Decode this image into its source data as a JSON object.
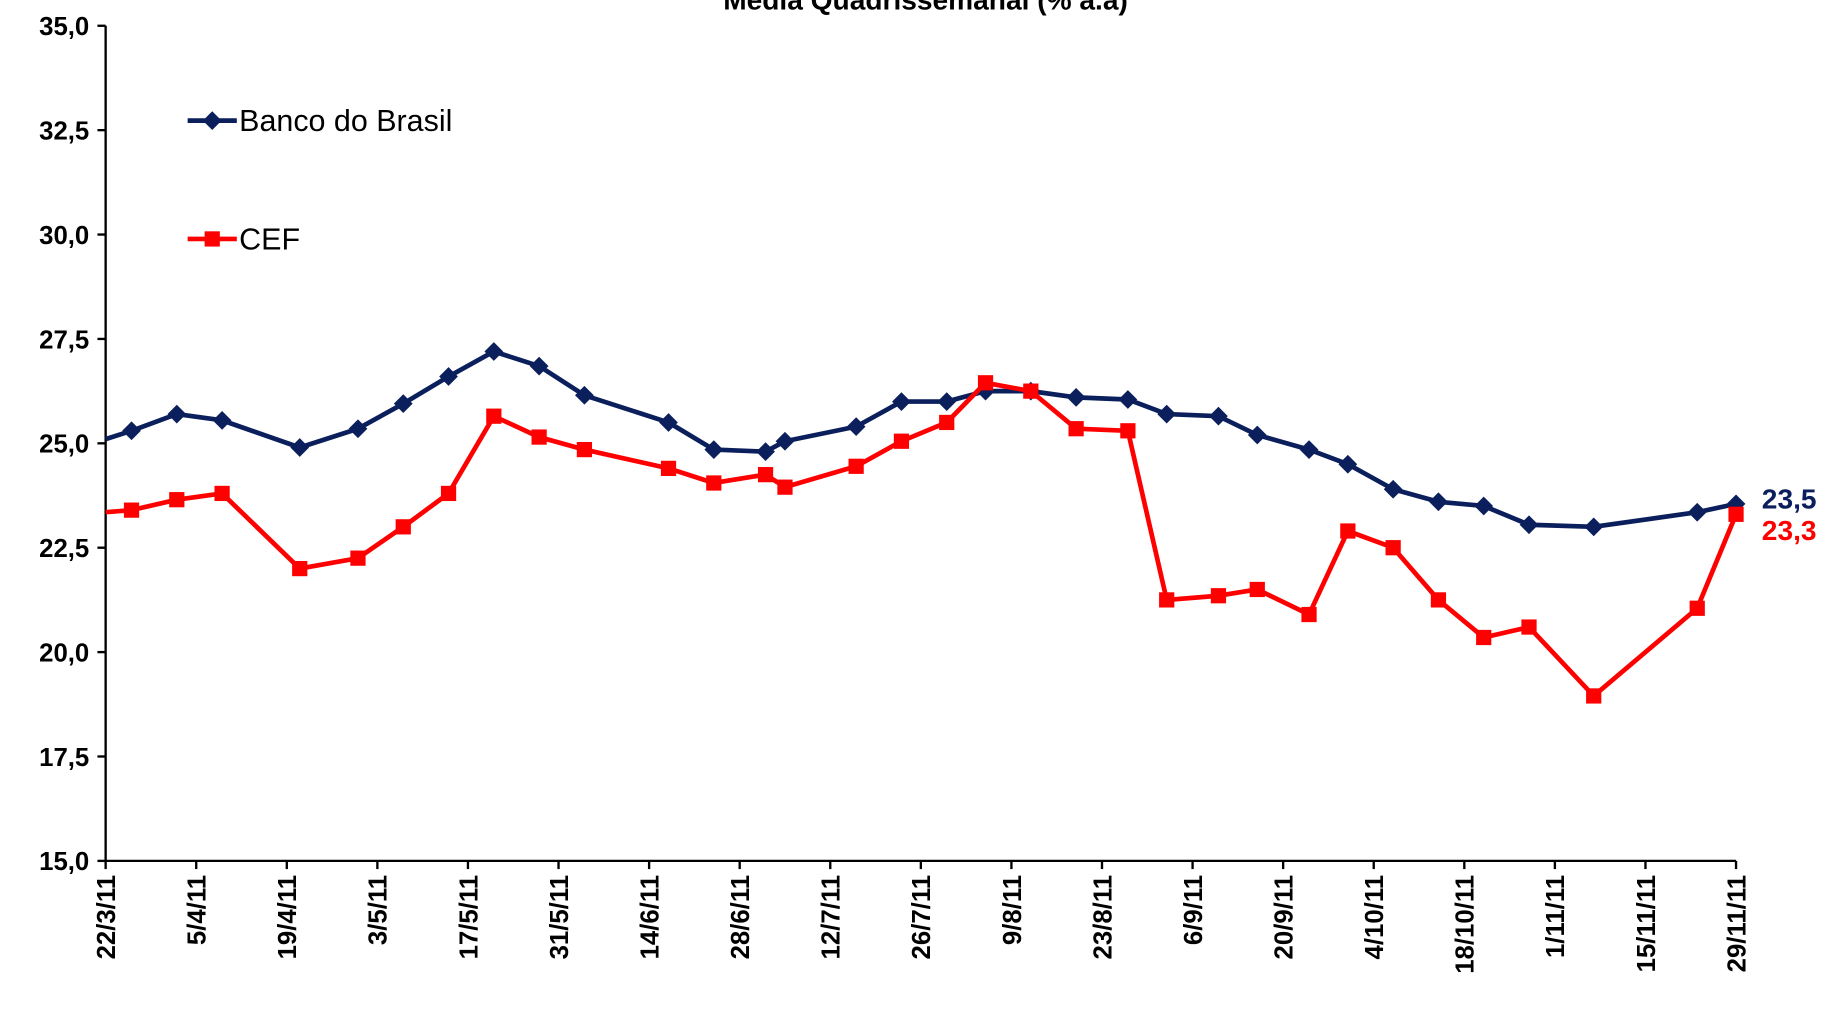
{
  "chart_data": {
    "type": "line",
    "title": "Média Quadrissemanal (% a.a)",
    "x": [
      "2011-03-22",
      "2011-03-26",
      "2011-04-02",
      "2011-04-09",
      "2011-04-21",
      "2011-04-30",
      "2011-05-07",
      "2011-05-14",
      "2011-05-21",
      "2011-05-28",
      "2011-06-04",
      "2011-06-17",
      "2011-06-24",
      "2011-07-02",
      "2011-07-05",
      "2011-07-16",
      "2011-07-23",
      "2011-07-30",
      "2011-08-05",
      "2011-08-12",
      "2011-08-19",
      "2011-08-27",
      "2011-09-02",
      "2011-09-10",
      "2011-09-16",
      "2011-09-24",
      "2011-09-30",
      "2011-10-07",
      "2011-10-14",
      "2011-10-21",
      "2011-10-28",
      "2011-11-07",
      "2011-11-23",
      "2011-11-29"
    ],
    "series": [
      {
        "name": "Banco do Brasil",
        "color": "#0a1f5c",
        "marker": "diamond",
        "values": [
          25.1,
          25.3,
          25.7,
          25.55,
          24.9,
          25.35,
          25.95,
          26.6,
          27.2,
          26.85,
          26.15,
          25.5,
          24.85,
          24.8,
          25.05,
          25.4,
          26.0,
          26.0,
          26.25,
          26.25,
          26.1,
          26.05,
          25.7,
          25.65,
          25.2,
          24.85,
          24.5,
          23.9,
          23.6,
          23.5,
          23.05,
          23.0,
          23.35,
          23.55
        ],
        "value_labels": [
          null,
          null,
          null,
          null,
          null,
          null,
          null,
          null,
          null,
          null,
          null,
          null,
          null,
          null,
          null,
          null,
          null,
          null,
          null,
          null,
          null,
          null,
          null,
          null,
          null,
          null,
          null,
          null,
          null,
          null,
          null,
          null,
          null,
          "23,5"
        ]
      },
      {
        "name": "CEF",
        "color": "#ff0000",
        "marker": "square",
        "values": [
          23.35,
          23.4,
          23.65,
          23.8,
          22.0,
          22.25,
          23.0,
          23.8,
          25.65,
          25.15,
          24.85,
          24.4,
          24.05,
          24.25,
          23.95,
          24.45,
          25.05,
          25.5,
          26.45,
          26.25,
          25.35,
          25.3,
          21.25,
          21.35,
          21.5,
          20.9,
          22.9,
          22.5,
          21.25,
          20.35,
          20.6,
          18.95,
          21.05,
          23.3
        ],
        "value_labels": [
          null,
          null,
          null,
          null,
          null,
          null,
          null,
          null,
          null,
          null,
          null,
          null,
          null,
          null,
          null,
          null,
          null,
          null,
          null,
          null,
          null,
          null,
          null,
          null,
          null,
          null,
          null,
          null,
          null,
          null,
          null,
          null,
          null,
          "23,3"
        ]
      }
    ],
    "xlim": [
      "2011-03-22",
      "2011-11-29"
    ],
    "xticks": [
      {
        "value": "2011-03-22",
        "label": "22/3/11"
      },
      {
        "value": "2011-04-05",
        "label": "5/4/11"
      },
      {
        "value": "2011-04-19",
        "label": "19/4/11"
      },
      {
        "value": "2011-05-03",
        "label": "3/5/11"
      },
      {
        "value": "2011-05-17",
        "label": "17/5/11"
      },
      {
        "value": "2011-05-31",
        "label": "31/5/11"
      },
      {
        "value": "2011-06-14",
        "label": "14/6/11"
      },
      {
        "value": "2011-06-28",
        "label": "28/6/11"
      },
      {
        "value": "2011-07-12",
        "label": "12/7/11"
      },
      {
        "value": "2011-07-26",
        "label": "26/7/11"
      },
      {
        "value": "2011-08-09",
        "label": "9/8/11"
      },
      {
        "value": "2011-08-23",
        "label": "23/8/11"
      },
      {
        "value": "2011-09-06",
        "label": "6/9/11"
      },
      {
        "value": "2011-09-20",
        "label": "20/9/11"
      },
      {
        "value": "2011-10-04",
        "label": "4/10/11"
      },
      {
        "value": "2011-10-18",
        "label": "18/10/11"
      },
      {
        "value": "2011-11-01",
        "label": "1/11/11"
      },
      {
        "value": "2011-11-15",
        "label": "15/11/11"
      },
      {
        "value": "2011-11-29",
        "label": "29/11/11"
      }
    ],
    "ylim": [
      15,
      35
    ],
    "yticks": [
      {
        "value": 15,
        "label": "15,0"
      },
      {
        "value": 17.5,
        "label": "17,5"
      },
      {
        "value": 20,
        "label": "20,0"
      },
      {
        "value": 22.5,
        "label": "22,5"
      },
      {
        "value": 25,
        "label": "25,0"
      },
      {
        "value": 27.5,
        "label": "27,5"
      },
      {
        "value": 30,
        "label": "30,0"
      },
      {
        "value": 32.5,
        "label": "32,5"
      },
      {
        "value": 35,
        "label": "35,0"
      }
    ],
    "legend": "upper left",
    "grid": false
  }
}
